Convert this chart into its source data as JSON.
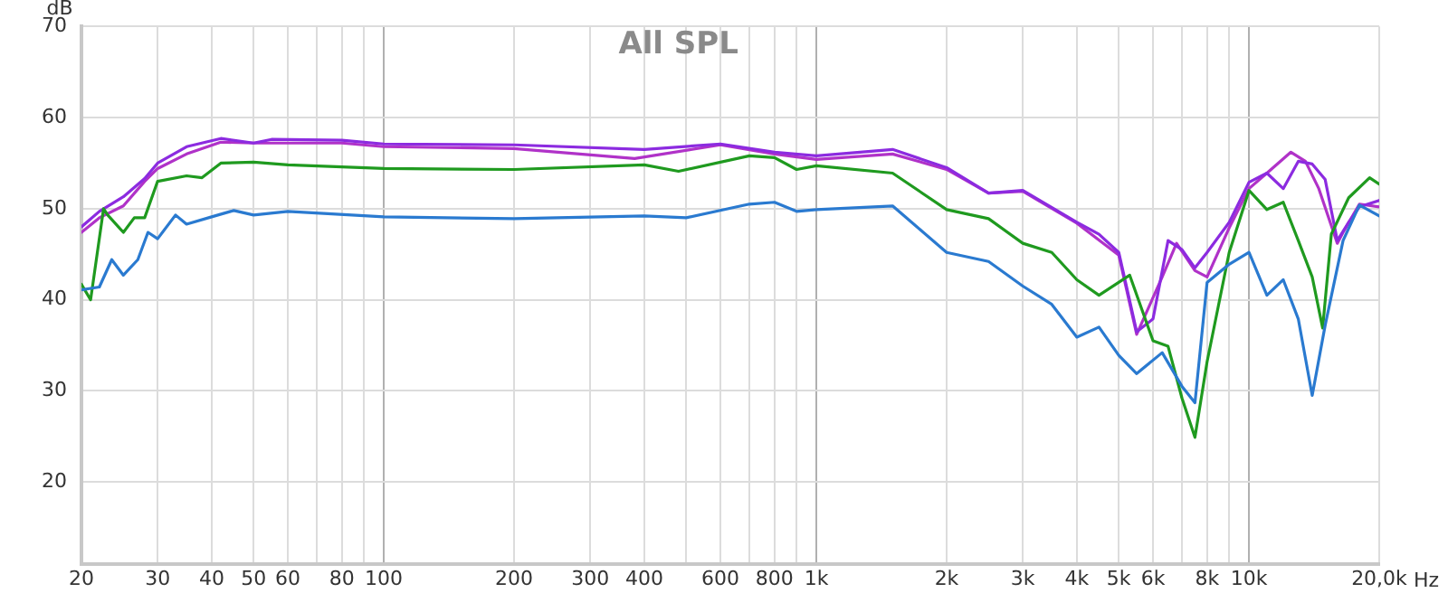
{
  "chart_data": {
    "type": "line",
    "title": "All SPL",
    "xlabel": "Hz",
    "ylabel": "dB",
    "log": "x",
    "grid": true,
    "legend": false,
    "marker": "none",
    "line_style": "solid",
    "xlim": [
      20,
      20000
    ],
    "ylim": [
      11,
      70
    ],
    "xticks": [
      20,
      30,
      40,
      50,
      60,
      {
        "value": 70,
        "label": null
      },
      80,
      {
        "value": 90,
        "label": null
      },
      100,
      200,
      300,
      400,
      {
        "value": 500,
        "label": null
      },
      600,
      {
        "value": 700,
        "label": null
      },
      800,
      {
        "value": 900,
        "label": null
      },
      {
        "value": 1000,
        "label": "1k"
      },
      {
        "value": 2000,
        "label": "2k"
      },
      {
        "value": 3000,
        "label": "3k"
      },
      {
        "value": 4000,
        "label": "4k"
      },
      {
        "value": 5000,
        "label": "5k"
      },
      {
        "value": 6000,
        "label": "6k"
      },
      {
        "value": 7000,
        "label": null
      },
      {
        "value": 8000,
        "label": "8k"
      },
      {
        "value": 9000,
        "label": null
      },
      {
        "value": 10000,
        "label": "10k"
      },
      {
        "value": 20000,
        "label": "20,0k"
      }
    ],
    "yticks": [
      20,
      30,
      40,
      50,
      60,
      70
    ],
    "series": [
      {
        "color": "#2a7ad0",
        "x": [
          20,
          22,
          23.5,
          25,
          27,
          28.5,
          30,
          33,
          35,
          40,
          45,
          50,
          60,
          100,
          200,
          400,
          500,
          700,
          800,
          900,
          1000,
          1500,
          2000,
          2500,
          3000,
          3500,
          4000,
          4500,
          5000,
          5500,
          6300,
          7000,
          7500,
          8000,
          9000,
          10000,
          11000,
          12000,
          13000,
          14000,
          15000,
          16500,
          18000,
          20000
        ],
        "values": [
          41.1,
          41.4,
          44.4,
          42.7,
          44.4,
          47.4,
          46.7,
          49.3,
          48.3,
          49.1,
          49.8,
          49.3,
          49.7,
          49.1,
          48.9,
          49.2,
          49,
          50.5,
          50.7,
          49.7,
          49.9,
          50.3,
          45.2,
          44.2,
          41.5,
          39.5,
          35.9,
          37,
          33.9,
          31.9,
          34.2,
          30.5,
          28.7,
          41.9,
          43.9,
          45.2,
          40.5,
          42.2,
          37.9,
          29.5,
          37.2,
          46.5,
          50.4,
          49.2
        ]
      },
      {
        "color": "#1f9a1f",
        "x": [
          20,
          21,
          22.5,
          23,
          25,
          26.5,
          28,
          30,
          35,
          38,
          42,
          50,
          60,
          100,
          200,
          400,
          480,
          700,
          800,
          900,
          1000,
          1500,
          2000,
          2500,
          3000,
          3500,
          4000,
          4500,
          5300,
          6000,
          6500,
          7000,
          7500,
          8000,
          9000,
          10000,
          11000,
          12000,
          13000,
          14000,
          14800,
          15500,
          17000,
          19000,
          20000
        ],
        "values": [
          41.7,
          40,
          50,
          49.3,
          47.4,
          49,
          49,
          53,
          53.6,
          53.4,
          55,
          55.1,
          54.8,
          54.4,
          54.3,
          54.8,
          54.1,
          55.8,
          55.6,
          54.3,
          54.7,
          53.9,
          49.9,
          48.9,
          46.2,
          45.2,
          42.2,
          40.5,
          42.7,
          35.5,
          34.9,
          29.2,
          24.9,
          33.2,
          45.2,
          52,
          49.9,
          50.7,
          46.5,
          42.5,
          36.9,
          47.2,
          51.2,
          53.4,
          52.7
        ]
      },
      {
        "color": "#8c2be0",
        "x": [
          20,
          22,
          25,
          28,
          30,
          35,
          42,
          50,
          55,
          80,
          100,
          200,
          400,
          600,
          800,
          1000,
          1500,
          2000,
          2500,
          3000,
          4000,
          4500,
          5000,
          5500,
          6000,
          6500,
          7000,
          7500,
          8000,
          9000,
          10000,
          11000,
          12000,
          13000,
          14000,
          15000,
          16000,
          17000,
          18000,
          20000
        ],
        "values": [
          48,
          49.7,
          51.3,
          53.3,
          55,
          56.8,
          57.7,
          57.2,
          57.6,
          57.5,
          57.1,
          57,
          56.5,
          57.1,
          56.2,
          55.8,
          56.5,
          54.5,
          51.7,
          52,
          48.5,
          47.2,
          45.2,
          36.5,
          37.9,
          46.5,
          45.5,
          43.5,
          45.2,
          48.5,
          52.9,
          53.9,
          52.2,
          55.2,
          54.9,
          53.2,
          46.5,
          48.5,
          50.2,
          50.9
        ]
      },
      {
        "color": "#b032c8",
        "x": [
          20,
          22,
          25,
          28,
          30,
          35,
          42,
          50,
          80,
          100,
          200,
          380,
          600,
          800,
          1000,
          1500,
          2000,
          2500,
          3000,
          4000,
          5000,
          5500,
          6300,
          6800,
          7500,
          8000,
          9000,
          10000,
          11000,
          12500,
          13500,
          14500,
          16000,
          16500,
          18000,
          20000
        ],
        "values": [
          47.4,
          49,
          50.3,
          53,
          54.4,
          56,
          57.3,
          57.2,
          57.2,
          56.8,
          56.6,
          55.5,
          57,
          56,
          55.4,
          56,
          54.3,
          51.7,
          51.9,
          48.4,
          44.9,
          36.2,
          42.5,
          46.2,
          43.2,
          42.5,
          47.9,
          52.2,
          53.9,
          56.2,
          55.2,
          52.2,
          46.2,
          47.4,
          50.5,
          50.2
        ]
      }
    ]
  }
}
